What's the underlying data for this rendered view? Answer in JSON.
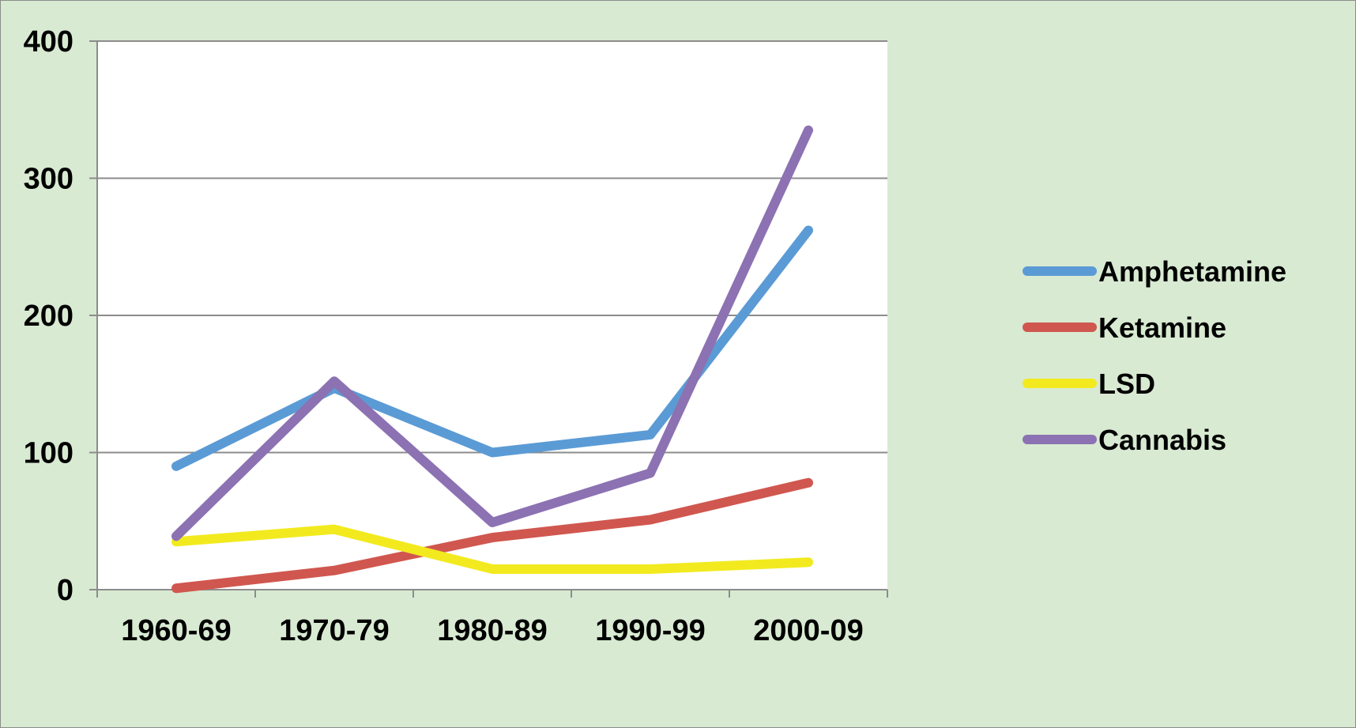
{
  "chart_data": {
    "type": "line",
    "categories": [
      "1960-69",
      "1970-79",
      "1980-89",
      "1990-99",
      "2000-09"
    ],
    "series": [
      {
        "name": "Amphetamine",
        "color": "#5b9bd5",
        "values": [
          90,
          147,
          100,
          113,
          262
        ]
      },
      {
        "name": "Ketamine",
        "color": "#d0574f",
        "values": [
          1,
          14,
          38,
          51,
          78
        ]
      },
      {
        "name": "LSD",
        "color": "#f2ea1e",
        "values": [
          35,
          44,
          15,
          15,
          20
        ]
      },
      {
        "name": "Cannabis",
        "color": "#8c72b2",
        "values": [
          39,
          152,
          49,
          85,
          335
        ]
      }
    ],
    "yticks": [
      0,
      100,
      200,
      300,
      400
    ],
    "ylim": [
      0,
      400
    ],
    "grid": true,
    "legend_position": "right",
    "title": "",
    "xlabel": "",
    "ylabel": ""
  }
}
